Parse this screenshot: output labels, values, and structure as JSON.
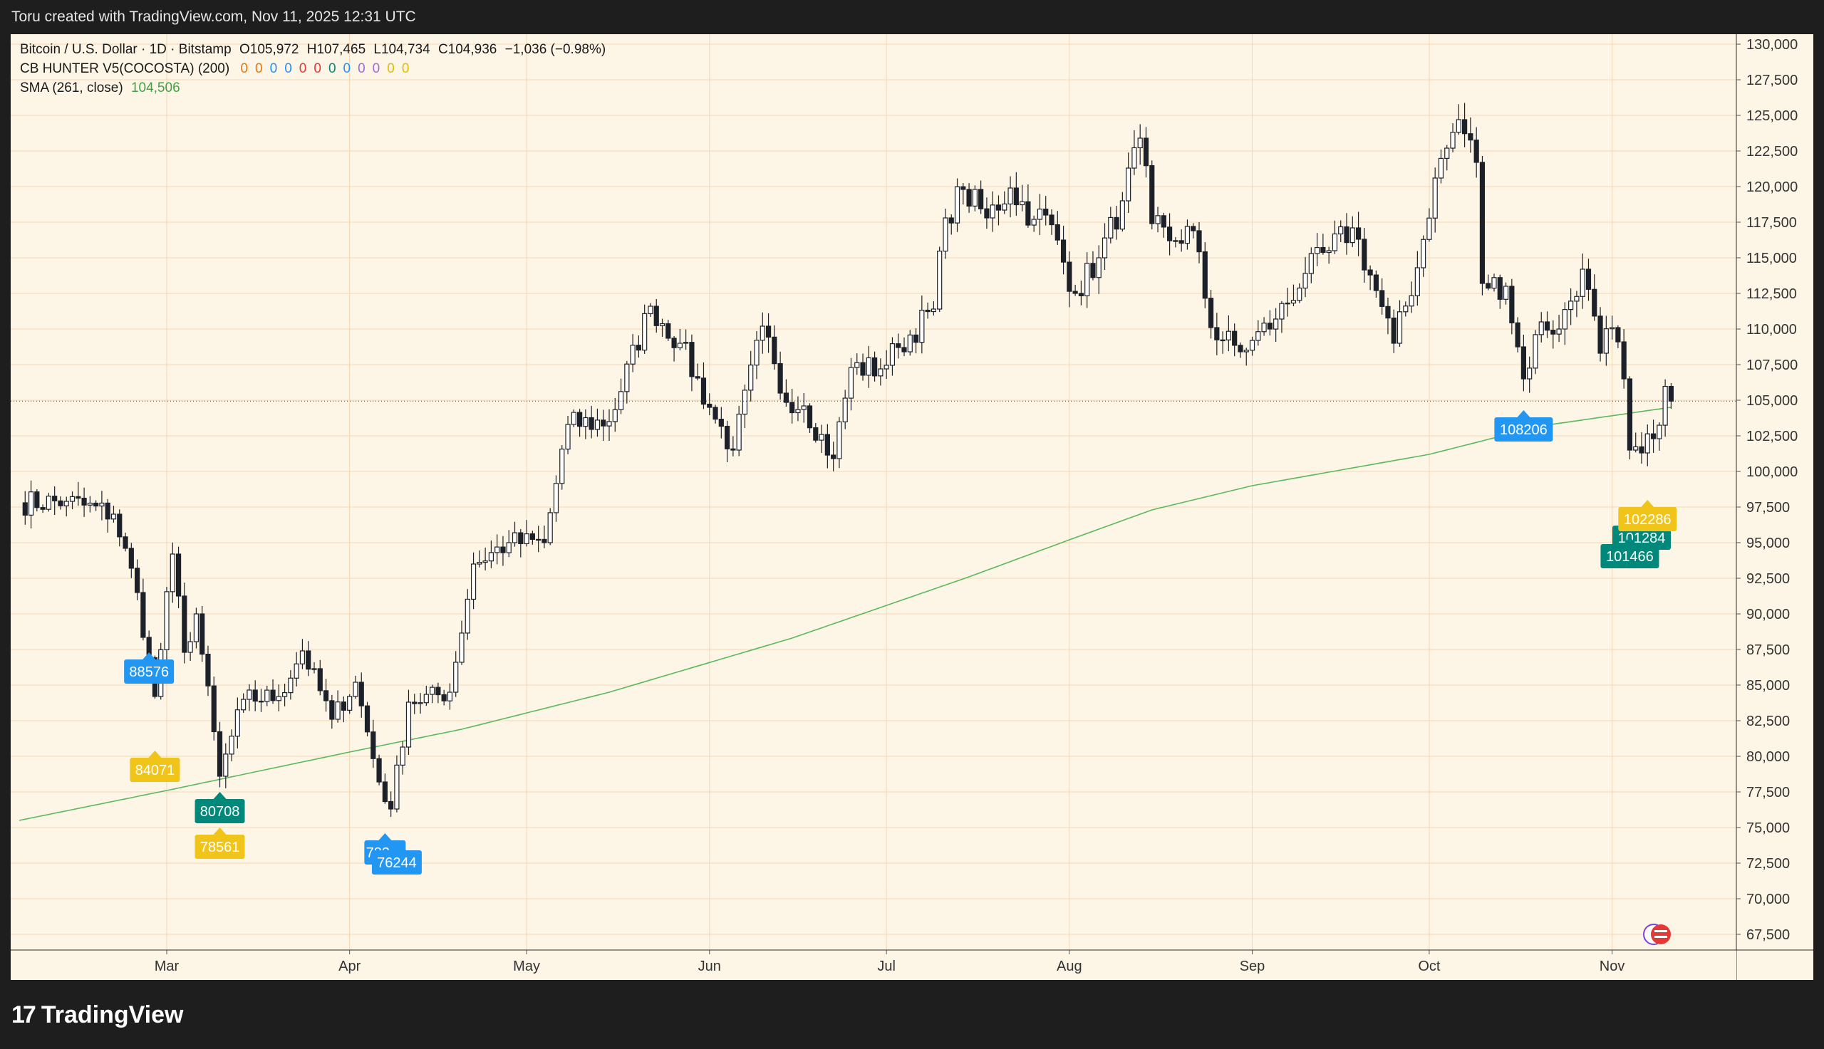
{
  "header": {
    "attribution": "Toru created with TradingView.com, Nov 11, 2025 12:31 UTC"
  },
  "legend": {
    "symbol": "Bitcoin / U.S. Dollar · 1D · Bitstamp",
    "open": "O105,972",
    "high": "H107,465",
    "low": "L104,734",
    "close": "C104,936",
    "change": "−1,036 (−0.98%)",
    "indicator1_name": "CB HUNTER V5(COCOSTA) (200)",
    "indicator1_values": [
      "0",
      "0",
      "0",
      "0",
      "0",
      "0",
      "0",
      "0",
      "0",
      "0",
      "0",
      "0"
    ],
    "indicator1_colors": [
      "#e8760a",
      "#e8760a",
      "#1e90ff",
      "#1e90ff",
      "#e53935",
      "#e53935",
      "#00897b",
      "#1e90ff",
      "#9c6ade",
      "#9c6ade",
      "#e6b800",
      "#e6b800"
    ],
    "indicator2_name": "SMA (261, close)",
    "indicator2_value": "104,506",
    "indicator2_color": "#43a047"
  },
  "footer": {
    "brand": "TradingView",
    "logo_mark": "17"
  },
  "chart_data": {
    "type": "candlestick",
    "symbol": "BTCUSD",
    "timeframe": "1D",
    "y_axis": {
      "ticks": [
        130000,
        127500,
        125000,
        122500,
        120000,
        117500,
        115000,
        112500,
        110000,
        107500,
        105000,
        102500,
        100000,
        97500,
        95000,
        92500,
        90000,
        87500,
        85000,
        82500,
        80000,
        77500,
        75000,
        72500,
        70000,
        67500
      ],
      "tick_labels": [
        "130,000",
        "127,500",
        "125,000",
        "122,500",
        "120,000",
        "117,500",
        "115,000",
        "112,500",
        "110,000",
        "107,500",
        "105,000",
        "102,500",
        "100,000",
        "97,500",
        "95,000",
        "92,500",
        "90,000",
        "87,500",
        "85,000",
        "82,500",
        "80,000",
        "77,500",
        "75,000",
        "72,500",
        "70,000",
        "67,500"
      ],
      "ylim": [
        66400,
        130700
      ]
    },
    "x_axis": {
      "range": [
        "2025-02-04",
        "2025-11-12"
      ],
      "months": [
        {
          "label": "Mar",
          "date": "2025-03-01"
        },
        {
          "label": "Apr",
          "date": "2025-04-01"
        },
        {
          "label": "May",
          "date": "2025-05-01"
        },
        {
          "label": "Jun",
          "date": "2025-06-01"
        },
        {
          "label": "Jul",
          "date": "2025-07-01"
        },
        {
          "label": "Aug",
          "date": "2025-08-01"
        },
        {
          "label": "Sep",
          "date": "2025-09-01"
        },
        {
          "label": "Oct",
          "date": "2025-10-01"
        },
        {
          "label": "Nov",
          "date": "2025-11-01"
        }
      ]
    },
    "current_price_line": 104936,
    "close_anchors": [
      [
        "2025-02-04",
        97800
      ],
      [
        "2025-02-12",
        97900
      ],
      [
        "2025-02-20",
        97000
      ],
      [
        "2025-02-24",
        91500
      ],
      [
        "2025-02-27",
        84200
      ],
      [
        "2025-03-02",
        94200
      ],
      [
        "2025-03-04",
        87300
      ],
      [
        "2025-03-06",
        90000
      ],
      [
        "2025-03-10",
        78600
      ],
      [
        "2025-03-14",
        84000
      ],
      [
        "2025-03-20",
        84200
      ],
      [
        "2025-03-24",
        87400
      ],
      [
        "2025-03-29",
        82600
      ],
      [
        "2025-04-02",
        85200
      ],
      [
        "2025-04-06",
        78200
      ],
      [
        "2025-04-08",
        76300
      ],
      [
        "2025-04-11",
        83800
      ],
      [
        "2025-04-18",
        84500
      ],
      [
        "2025-04-22",
        93500
      ],
      [
        "2025-04-28",
        95000
      ],
      [
        "2025-05-04",
        95000
      ],
      [
        "2025-05-08",
        103300
      ],
      [
        "2025-05-15",
        103500
      ],
      [
        "2025-05-22",
        111600
      ],
      [
        "2025-05-27",
        109000
      ],
      [
        "2025-06-01",
        104500
      ],
      [
        "2025-06-05",
        101500
      ],
      [
        "2025-06-10",
        110200
      ],
      [
        "2025-06-13",
        105500
      ],
      [
        "2025-06-17",
        104600
      ],
      [
        "2025-06-22",
        100900
      ],
      [
        "2025-06-25",
        107300
      ],
      [
        "2025-06-30",
        107200
      ],
      [
        "2025-07-03",
        108700
      ],
      [
        "2025-07-09",
        111400
      ],
      [
        "2025-07-11",
        117800
      ],
      [
        "2025-07-14",
        119800
      ],
      [
        "2025-07-18",
        117800
      ],
      [
        "2025-07-22",
        119900
      ],
      [
        "2025-07-26",
        117700
      ],
      [
        "2025-07-28",
        118000
      ],
      [
        "2025-08-02",
        112500
      ],
      [
        "2025-08-06",
        115000
      ],
      [
        "2025-08-10",
        119000
      ],
      [
        "2025-08-13",
        123400
      ],
      [
        "2025-08-15",
        117400
      ],
      [
        "2025-08-18",
        116200
      ],
      [
        "2025-08-22",
        116900
      ],
      [
        "2025-08-25",
        110100
      ],
      [
        "2025-08-30",
        108400
      ],
      [
        "2025-09-01",
        109200
      ],
      [
        "2025-09-05",
        110700
      ],
      [
        "2025-09-10",
        113900
      ],
      [
        "2025-09-14",
        115500
      ],
      [
        "2025-09-18",
        117100
      ],
      [
        "2025-09-22",
        112700
      ],
      [
        "2025-09-25",
        109000
      ],
      [
        "2025-09-29",
        114300
      ],
      [
        "2025-10-02",
        120600
      ],
      [
        "2025-10-06",
        124700
      ],
      [
        "2025-10-09",
        121700
      ],
      [
        "2025-10-10",
        113200
      ],
      [
        "2025-10-14",
        113000
      ],
      [
        "2025-10-17",
        106500
      ],
      [
        "2025-10-20",
        110500
      ],
      [
        "2025-10-23",
        110000
      ],
      [
        "2025-10-27",
        114200
      ],
      [
        "2025-10-30",
        108300
      ],
      [
        "2025-11-01",
        110100
      ],
      [
        "2025-11-03",
        106500
      ],
      [
        "2025-11-04",
        101500
      ],
      [
        "2025-11-06",
        101300
      ],
      [
        "2025-11-08",
        102300
      ],
      [
        "2025-11-10",
        105972
      ],
      [
        "2025-11-11",
        104936
      ]
    ],
    "sma_261_anchors": [
      [
        "2025-02-04",
        75500
      ],
      [
        "2025-03-01",
        77600
      ],
      [
        "2025-04-01",
        80300
      ],
      [
        "2025-04-20",
        81900
      ],
      [
        "2025-05-15",
        84500
      ],
      [
        "2025-06-15",
        88300
      ],
      [
        "2025-07-15",
        92600
      ],
      [
        "2025-08-01",
        95200
      ],
      [
        "2025-08-15",
        97300
      ],
      [
        "2025-09-01",
        99000
      ],
      [
        "2025-10-01",
        101200
      ],
      [
        "2025-10-20",
        103200
      ],
      [
        "2025-11-11",
        104506
      ]
    ],
    "sma_color": "#5cb85c",
    "signals": [
      {
        "label": "88576",
        "date": "2025-02-26",
        "price": 86800,
        "color": "#2196f3",
        "text_color": "#ffffff",
        "dir": "up"
      },
      {
        "label": "84071",
        "date": "2025-02-27",
        "price": 79900,
        "color": "#f0c419",
        "text_color": "#ffffff",
        "dir": "up"
      },
      {
        "label": "80708",
        "date": "2025-03-10",
        "price": 77000,
        "color": "#00897b",
        "text_color": "#ffffff",
        "dir": "up"
      },
      {
        "label": "78561",
        "date": "2025-03-10",
        "price": 74500,
        "color": "#f0c419",
        "text_color": "#ffffff",
        "dir": "up"
      },
      {
        "label": "783…",
        "date": "2025-04-07",
        "price": 74100,
        "color": "#2196f3",
        "text_color": "#ffffff",
        "dir": "up"
      },
      {
        "label": "76244",
        "date": "2025-04-09",
        "price": 73400,
        "color": "#2196f3",
        "text_color": "#ffffff",
        "dir": "up"
      },
      {
        "label": "108206",
        "date": "2025-10-17",
        "price": 103800,
        "color": "#2196f3",
        "text_color": "#ffffff",
        "dir": "up"
      },
      {
        "label": "101284",
        "date": "2025-11-06",
        "price": 96200,
        "color": "#00897b",
        "text_color": "#ffffff",
        "dir": "up"
      },
      {
        "label": "101466",
        "date": "2025-11-04",
        "price": 94900,
        "color": "#00897b",
        "text_color": "#ffffff",
        "dir": "up"
      },
      {
        "label": "102286",
        "date": "2025-11-07",
        "price": 97500,
        "color": "#f0c419",
        "text_color": "#ffffff",
        "dir": "up"
      }
    ],
    "grid": true,
    "grid_color": "#f5d7b3",
    "background": "#fdf5e6",
    "candle_color": "#1c2029"
  }
}
